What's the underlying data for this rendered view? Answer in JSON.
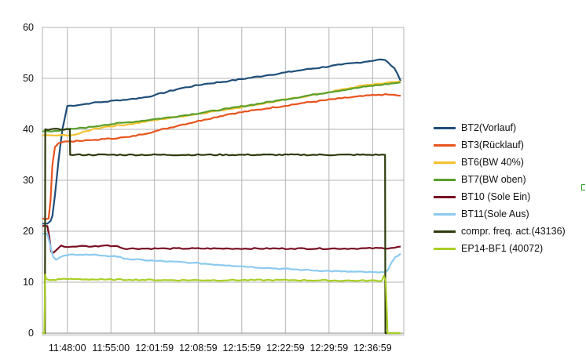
{
  "chart_data": {
    "type": "line",
    "title": "",
    "xlabel": "",
    "ylabel": "",
    "ylim": [
      0,
      60
    ],
    "yticks": [
      0,
      10,
      20,
      30,
      40,
      50,
      60
    ],
    "xticks": [
      "11:48:00",
      "11:55:00",
      "12:01:59",
      "12:08:59",
      "12:15:59",
      "12:22:59",
      "12:29:59",
      "12:36:59"
    ],
    "x_unit": "minutes",
    "x_range": [
      0,
      58
    ],
    "x_tick_minutes": [
      4,
      11,
      18,
      25,
      32,
      39,
      46,
      53
    ],
    "grid": true,
    "legend_position": "right",
    "series": [
      {
        "name": "BT2(Vorlauf)",
        "color": "#1f4e79",
        "x": [
          0,
          0.8,
          1.3,
          1.6,
          2,
          2.6,
          3.2,
          4,
          6,
          8,
          10,
          12,
          14,
          16,
          18,
          22,
          26,
          30,
          36,
          42,
          48,
          52,
          54,
          55,
          56.5,
          57.5
        ],
        "y": [
          21.5,
          21.5,
          22,
          23,
          27,
          34,
          40,
          44.6,
          44.8,
          45.2,
          45.4,
          45.7,
          45.9,
          46.2,
          46.7,
          48,
          48.9,
          49.5,
          50.6,
          51.7,
          52.7,
          53.3,
          53.7,
          53.6,
          52,
          49.5
        ]
      },
      {
        "name": "BT3(Rücklauf)",
        "color": "#e8541e",
        "x": [
          0,
          1,
          1.3,
          1.6,
          2.0,
          2.6,
          3.5,
          6,
          8,
          10,
          14,
          18,
          22,
          26,
          30,
          36,
          42,
          48,
          54,
          56,
          57.5
        ],
        "y": [
          22.5,
          22.5,
          26,
          33,
          36.5,
          37.3,
          37.6,
          37.7,
          37.9,
          38.1,
          38.5,
          39.6,
          40.8,
          41.9,
          43,
          44.1,
          45.2,
          46.1,
          46.8,
          46.8,
          46.6
        ]
      },
      {
        "name": "BT6(BW 40%)",
        "color": "#f5c12e",
        "x": [
          0,
          2,
          5,
          6,
          8,
          10,
          14,
          18,
          22,
          30,
          38,
          46,
          52,
          57.5
        ],
        "y": [
          38.8,
          38.8,
          38.9,
          39.2,
          40,
          40.5,
          41,
          41.8,
          42.5,
          44,
          45.6,
          47.3,
          48.7,
          49.4
        ]
      },
      {
        "name": "BT7(BW oben)",
        "color": "#5aa02c",
        "x": [
          0,
          2,
          5,
          8,
          10,
          14,
          18,
          22,
          30,
          38,
          46,
          52,
          57.5
        ],
        "y": [
          39.6,
          39.7,
          40.1,
          40.5,
          40.9,
          41.4,
          42,
          42.6,
          44.1,
          45.7,
          47.3,
          48.4,
          49.2
        ]
      },
      {
        "name": "BT10 (Sole Ein)",
        "color": "#7a0f23",
        "x": [
          0,
          0.8,
          1.1,
          1.4,
          1.8,
          2.4,
          3,
          4,
          6,
          8,
          10,
          12,
          13,
          20,
          30,
          40,
          50,
          56,
          57.5
        ],
        "y": [
          21,
          21,
          19,
          16,
          15.8,
          16.5,
          17.2,
          16.9,
          17.1,
          17,
          17.2,
          17.1,
          16.6,
          16.6,
          16.6,
          16.6,
          16.6,
          16.7,
          17
        ]
      },
      {
        "name": "BT11(Sole Aus)",
        "color": "#8ccaf0",
        "x": [
          0,
          0.8,
          1.3,
          1.7,
          2.2,
          3,
          4,
          6,
          8,
          10,
          12,
          14,
          18,
          24,
          30,
          36,
          42,
          48,
          54,
          55,
          55.5,
          56,
          56.7,
          57.5
        ],
        "y": [
          19.5,
          19.5,
          17,
          15,
          14.4,
          15,
          15.3,
          15.4,
          15.4,
          15.2,
          15,
          14.5,
          14.2,
          13.8,
          13.3,
          12.8,
          12.4,
          12.1,
          11.9,
          11.9,
          12.5,
          13.8,
          15,
          15.6
        ]
      },
      {
        "name": "compr. freq. act.(43136)",
        "color": "#2e3b0e",
        "x": [
          0,
          0.4,
          0.45,
          4.4,
          4.45,
          55,
          55.05,
          57.5
        ],
        "y": [
          0,
          0,
          40,
          40,
          35,
          35,
          0,
          0
        ]
      },
      {
        "name": "EP14-BF1 (40072)",
        "color": "#a9cf25",
        "x": [
          0,
          0.3,
          0.45,
          0.6,
          1.2,
          3,
          6,
          10,
          14,
          20,
          30,
          40,
          50,
          54.5,
          54.8,
          55.1,
          55.4,
          55.8,
          57.5
        ],
        "y": [
          0,
          0,
          11.5,
          10.6,
          10.4,
          10.6,
          10.6,
          10.5,
          10.5,
          10.4,
          10.4,
          10.4,
          10.3,
          10.3,
          11.2,
          10.4,
          0,
          0,
          0
        ]
      }
    ]
  }
}
